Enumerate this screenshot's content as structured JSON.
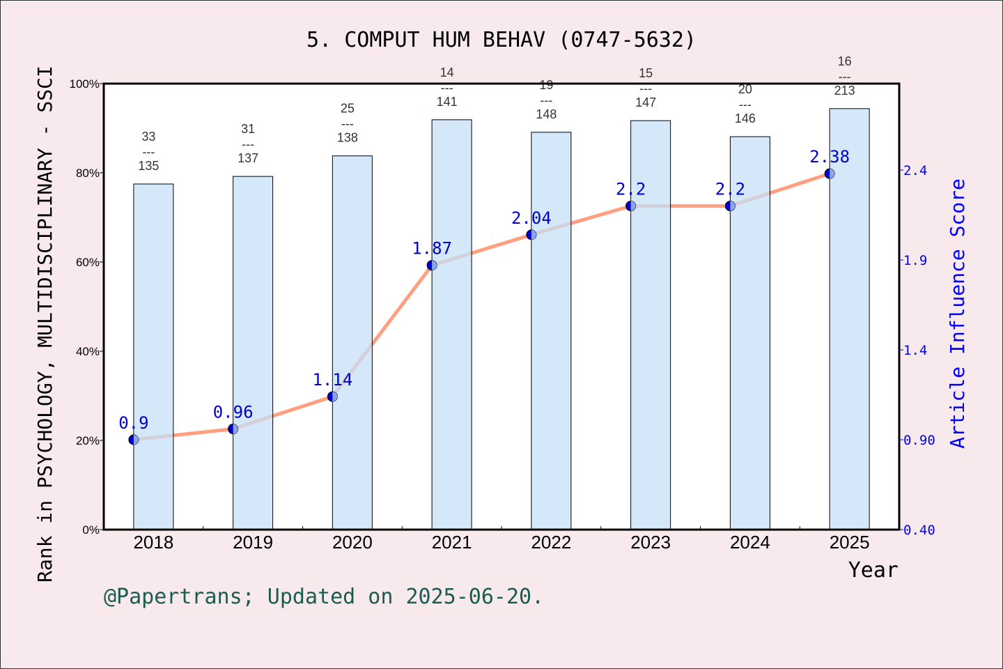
{
  "chart_data": {
    "type": "bar+line",
    "title": "5. COMPUT HUM BEHAV (0747-5632)",
    "xlabel": "Year",
    "ylabel_left": "Rank in PSYCHOLOGY, MULTIDISCIPLINARY - SSCI",
    "ylabel_right": "Article Influence Score",
    "categories": [
      "2018",
      "2019",
      "2020",
      "2021",
      "2022",
      "2023",
      "2024",
      "2025"
    ],
    "bars": {
      "values_percent": [
        77.5,
        79.2,
        83.8,
        91.9,
        89.1,
        91.7,
        88.1,
        94.4
      ],
      "rank_labels": [
        {
          "rank": "33",
          "total": "135"
        },
        {
          "rank": "31",
          "total": "137"
        },
        {
          "rank": "25",
          "total": "138"
        },
        {
          "rank": "14",
          "total": "141"
        },
        {
          "rank": "19",
          "total": "148"
        },
        {
          "rank": "15",
          "total": "147"
        },
        {
          "rank": "20",
          "total": "146"
        },
        {
          "rank": "16",
          "total": "213"
        }
      ],
      "separator": "---",
      "color": "#c5e0f7"
    },
    "line": {
      "values": [
        0.9,
        0.96,
        1.14,
        1.87,
        2.04,
        2.2,
        2.2,
        2.38
      ],
      "labels": [
        "0.9",
        "0.96",
        "1.14",
        "1.87",
        "2.04",
        "2.2",
        "2.2",
        "2.38"
      ],
      "color": "#ff9f7f",
      "marker_color": "#0000cc"
    },
    "left_axis": {
      "ylim": [
        0,
        100
      ],
      "ticks": [
        "0%",
        "20%",
        "40%",
        "60%",
        "80%",
        "100%"
      ]
    },
    "right_axis": {
      "ylim": [
        0.4,
        2.9
      ],
      "ticks": [
        "0.40",
        "0.90",
        "1.4",
        "1.9",
        "2.4"
      ],
      "tick_values": [
        0.4,
        0.9,
        1.4,
        1.9,
        2.4
      ],
      "color": "#0000ff"
    },
    "grid": false,
    "legend": "none"
  },
  "footer": "@Papertrans; Updated on 2025-06-20."
}
